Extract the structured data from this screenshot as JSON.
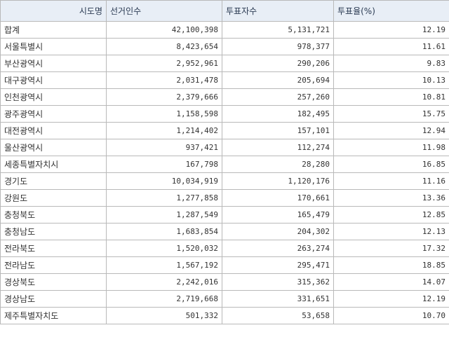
{
  "headers": [
    "시도명",
    "선거인수",
    "투표자수",
    "투표율(%)"
  ],
  "rows": [
    [
      "합계",
      "42,100,398",
      "5,131,721",
      "12.19"
    ],
    [
      "서울특별시",
      "8,423,654",
      "978,377",
      "11.61"
    ],
    [
      "부산광역시",
      "2,952,961",
      "290,206",
      "9.83"
    ],
    [
      "대구광역시",
      "2,031,478",
      "205,694",
      "10.13"
    ],
    [
      "인천광역시",
      "2,379,666",
      "257,260",
      "10.81"
    ],
    [
      "광주광역시",
      "1,158,598",
      "182,495",
      "15.75"
    ],
    [
      "대전광역시",
      "1,214,402",
      "157,101",
      "12.94"
    ],
    [
      "울산광역시",
      "937,421",
      "112,274",
      "11.98"
    ],
    [
      "세종특별자치시",
      "167,798",
      "28,280",
      "16.85"
    ],
    [
      "경기도",
      "10,034,919",
      "1,120,176",
      "11.16"
    ],
    [
      "강원도",
      "1,277,858",
      "170,661",
      "13.36"
    ],
    [
      "충청북도",
      "1,287,549",
      "165,479",
      "12.85"
    ],
    [
      "충청남도",
      "1,683,854",
      "204,302",
      "12.13"
    ],
    [
      "전라북도",
      "1,520,032",
      "263,274",
      "17.32"
    ],
    [
      "전라남도",
      "1,567,192",
      "295,471",
      "18.85"
    ],
    [
      "경상북도",
      "2,242,016",
      "315,362",
      "14.07"
    ],
    [
      "경상남도",
      "2,719,668",
      "331,651",
      "12.19"
    ],
    [
      "제주특별자치도",
      "501,332",
      "53,658",
      "10.70"
    ]
  ]
}
